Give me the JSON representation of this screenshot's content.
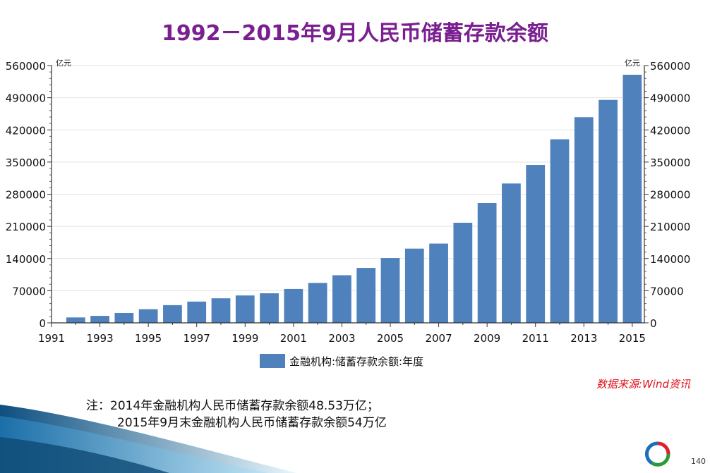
{
  "title": "1992－2015年9月人民币储蓄存款余额",
  "source": "数据来源:Wind资讯",
  "note": {
    "line1": "注：2014年金融机构人民币储蓄存款余额48.53万亿；",
    "line2": "2015年9月末金融机构人民币储蓄存款余额54万亿"
  },
  "page_number": "140",
  "colors": {
    "bar": "#4f81bd",
    "title": "#7a1f8f",
    "source": "#e0101a"
  },
  "chart_data": {
    "type": "bar",
    "title": "1992－2015年9月人民币储蓄存款余额",
    "unit_left": "亿元",
    "unit_right": "亿元",
    "x_range": [
      1991,
      2015
    ],
    "x_tick_labels": [
      "1991",
      "1993",
      "1995",
      "1997",
      "1999",
      "2001",
      "2003",
      "2005",
      "2007",
      "2009",
      "2011",
      "2013",
      "2015"
    ],
    "categories": [
      1992,
      1993,
      1994,
      1995,
      1996,
      1997,
      1998,
      1999,
      2000,
      2001,
      2002,
      2003,
      2004,
      2005,
      2006,
      2007,
      2008,
      2009,
      2010,
      2011,
      2012,
      2013,
      2014,
      2015
    ],
    "series": [
      {
        "name": "金融机构:储蓄存款余额:年度",
        "values": [
          11759,
          15204,
          21519,
          29662,
          38521,
          46280,
          53408,
          59622,
          64332,
          73762,
          86911,
          103618,
          119555,
          141051,
          161587,
          172534,
          217885,
          260772,
          303302,
          343636,
          399551,
          447602,
          485261,
          540000
        ]
      }
    ],
    "ylim": [
      0,
      560000
    ],
    "y_ticks": [
      0,
      70000,
      140000,
      210000,
      280000,
      350000,
      420000,
      490000,
      560000
    ],
    "grid": true,
    "legend_position": "bottom"
  }
}
